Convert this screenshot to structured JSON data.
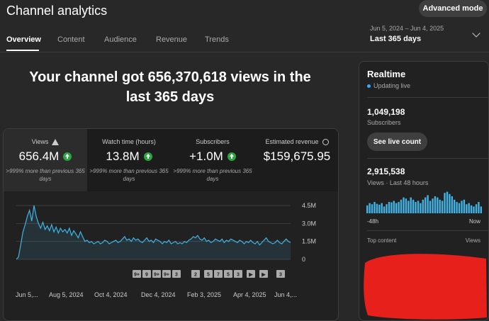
{
  "header": {
    "title": "Channel analytics",
    "advanced_mode": "Advanced mode",
    "date_range": "Jun 5, 2024 – Jun 4, 2025",
    "preset": "Last 365 days"
  },
  "tabs": [
    {
      "label": "Overview",
      "active": true
    },
    {
      "label": "Content"
    },
    {
      "label": "Audience"
    },
    {
      "label": "Revenue"
    },
    {
      "label": "Trends"
    }
  ],
  "headline": "Your channel got 656,370,618 views in the last 365 days",
  "metrics": [
    {
      "label": "Views",
      "value": "656.4M",
      "note": ">999% more than previous 365 days",
      "icon": "warning-icon"
    },
    {
      "label": "Watch time (hours)",
      "value": "13.8M",
      "note": ">999% more than previous 365 days"
    },
    {
      "label": "Subscribers",
      "value": "+1.0M",
      "note": ">999% more than previous 365 days"
    },
    {
      "label": "Estimated revenue",
      "value": "$159,675.95",
      "icon": "clock-icon"
    }
  ],
  "chart_data": {
    "type": "area",
    "series": [
      {
        "color": "#41b4e6",
        "values": [
          0,
          0.2,
          1.2,
          2.3,
          2.9,
          3.6,
          4.1,
          3.2,
          4.5,
          3.6,
          3.0,
          2.6,
          3.1,
          2.5,
          2.8,
          2.4,
          2.9,
          2.3,
          2.7,
          2.2,
          2.6,
          2.3,
          2.5,
          2.2,
          2.6,
          2.0,
          2.4,
          2.1,
          1.8,
          2.3,
          1.9,
          1.5,
          1.6,
          1.4,
          1.5,
          1.3,
          1.4,
          1.5,
          1.3,
          1.4,
          1.6,
          1.5,
          1.3,
          1.4,
          1.5,
          1.6,
          1.4,
          1.5,
          1.7,
          1.9,
          1.6,
          1.7,
          1.5,
          1.8,
          1.6,
          1.7,
          1.5,
          1.4,
          1.6,
          1.8,
          1.5,
          1.6,
          1.4,
          1.7,
          1.6,
          1.5,
          1.3,
          1.5,
          1.4,
          1.6,
          1.3,
          1.4,
          1.5,
          1.3,
          1.4,
          1.3,
          1.5,
          1.4,
          1.6,
          1.7,
          1.9,
          1.8,
          2.0,
          1.7,
          1.6,
          1.8,
          1.5,
          1.6,
          1.4,
          1.5,
          1.7,
          1.6,
          1.5,
          1.7,
          1.4,
          1.6,
          1.5,
          1.7,
          1.6,
          1.5,
          1.4,
          1.6,
          1.5,
          1.3,
          1.5,
          1.4,
          1.6,
          1.4,
          1.3,
          1.5,
          1.2,
          1.4,
          1.6,
          1.8,
          1.5,
          1.4,
          1.3,
          1.4,
          1.6,
          1.4,
          1.3,
          1.5,
          1.7,
          1.5,
          1.4
        ]
      }
    ],
    "ylim": [
      0,
      4.5
    ],
    "y_ticks": [
      "0",
      "1.5M",
      "3.0M",
      "4.5M"
    ],
    "x_ticks": [
      "Jun 5,...",
      "Aug 5, 2024",
      "Oct 4, 2024",
      "Dec 4, 2024",
      "Feb 3, 2025",
      "Apr 4, 2025",
      "Jun 4,..."
    ],
    "markers": [
      "9+",
      "9",
      "9+",
      "9+",
      "3",
      "2",
      "5",
      "7",
      "5",
      "3",
      "▶",
      "▶",
      "3"
    ]
  },
  "realtime": {
    "title": "Realtime",
    "status": "Updating live",
    "subscribers": "1,049,198",
    "subscribers_label": "Subscribers",
    "see_live": "See live count",
    "views": "2,915,538",
    "views_label": "Views · Last 48 hours",
    "axis_start": "-48h",
    "axis_end": "Now",
    "top_content": "Top content",
    "views_col": "Views",
    "bars": [
      0.35,
      0.45,
      0.4,
      0.5,
      0.42,
      0.38,
      0.45,
      0.3,
      0.4,
      0.5,
      0.48,
      0.55,
      0.45,
      0.5,
      0.6,
      0.7,
      0.65,
      0.55,
      0.7,
      0.6,
      0.5,
      0.55,
      0.45,
      0.6,
      0.7,
      0.8,
      0.55,
      0.65,
      0.75,
      0.7,
      0.6,
      0.55,
      0.9,
      0.95,
      0.85,
      0.75,
      0.6,
      0.5,
      0.45,
      0.55,
      0.6,
      0.4,
      0.45,
      0.35,
      0.3,
      0.4,
      0.5,
      0.3
    ]
  }
}
